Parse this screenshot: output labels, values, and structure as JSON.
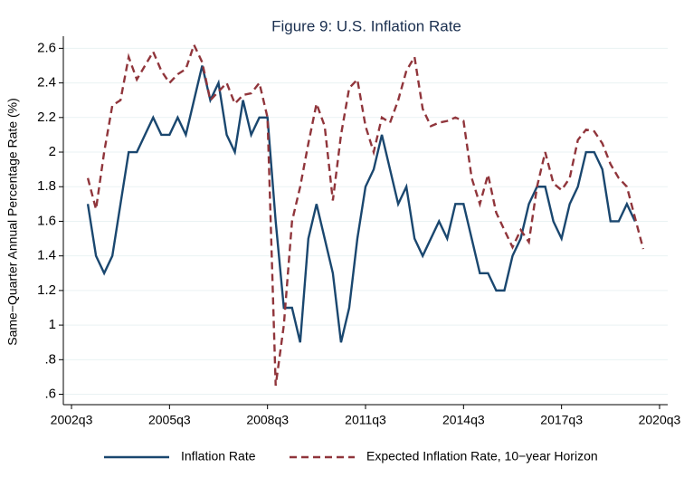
{
  "chart_data": {
    "type": "line",
    "title": "Figure 9: U.S. Inflation Rate",
    "y_label": "Same−Quarter Annual Percentage Rate (%)",
    "x": [
      "2003q1",
      "2003q2",
      "2003q3",
      "2003q4",
      "2004q1",
      "2004q2",
      "2004q3",
      "2004q4",
      "2005q1",
      "2005q2",
      "2005q3",
      "2005q4",
      "2006q1",
      "2006q2",
      "2006q3",
      "2006q4",
      "2007q1",
      "2007q2",
      "2007q3",
      "2007q4",
      "2008q1",
      "2008q2",
      "2008q3",
      "2008q4",
      "2009q1",
      "2009q2",
      "2009q3",
      "2009q4",
      "2010q1",
      "2010q2",
      "2010q3",
      "2010q4",
      "2011q1",
      "2011q2",
      "2011q3",
      "2011q4",
      "2012q1",
      "2012q2",
      "2012q3",
      "2012q4",
      "2013q1",
      "2013q2",
      "2013q3",
      "2013q4",
      "2014q1",
      "2014q2",
      "2014q3",
      "2014q4",
      "2015q1",
      "2015q2",
      "2015q3",
      "2015q4",
      "2016q1",
      "2016q2",
      "2016q3",
      "2016q4",
      "2017q1",
      "2017q2",
      "2017q3",
      "2017q4",
      "2018q1",
      "2018q2",
      "2018q3",
      "2018q4",
      "2019q1",
      "2019q2",
      "2019q3",
      "2019q4",
      "2020q1"
    ],
    "series": [
      {
        "name": "Inflation Rate",
        "color": "#1a476f",
        "dash": false,
        "values": [
          1.7,
          1.4,
          1.3,
          1.4,
          1.7,
          2.0,
          2.0,
          2.1,
          2.2,
          2.1,
          2.1,
          2.2,
          2.1,
          2.3,
          2.5,
          2.3,
          2.4,
          2.1,
          2.0,
          2.3,
          2.1,
          2.2,
          2.2,
          1.6,
          1.1,
          1.1,
          0.9,
          1.5,
          1.7,
          1.5,
          1.3,
          0.9,
          1.1,
          1.5,
          1.8,
          1.9,
          2.1,
          1.9,
          1.7,
          1.8,
          1.5,
          1.4,
          1.5,
          1.6,
          1.5,
          1.7,
          1.7,
          1.5,
          1.3,
          1.3,
          1.2,
          1.2,
          1.4,
          1.5,
          1.7,
          1.8,
          1.8,
          1.6,
          1.5,
          1.7,
          1.8,
          2.0,
          2.0,
          1.9,
          1.6,
          1.6,
          1.7,
          1.6,
          null
        ]
      },
      {
        "name": "Expected Inflation Rate, 10−year Horizon",
        "color": "#90353b",
        "dash": true,
        "values": [
          1.85,
          1.67,
          2.0,
          2.27,
          2.3,
          2.55,
          2.42,
          2.5,
          2.58,
          2.47,
          2.4,
          2.45,
          2.48,
          2.62,
          2.52,
          2.3,
          2.35,
          2.4,
          2.28,
          2.33,
          2.34,
          2.4,
          2.2,
          0.65,
          1.0,
          1.6,
          1.8,
          2.05,
          2.28,
          2.15,
          1.72,
          2.1,
          2.37,
          2.42,
          2.15,
          2.0,
          2.2,
          2.17,
          2.3,
          2.47,
          2.55,
          2.25,
          2.15,
          2.17,
          2.18,
          2.2,
          2.18,
          1.85,
          1.7,
          1.87,
          1.65,
          1.55,
          1.45,
          1.55,
          1.48,
          1.8,
          2.0,
          1.82,
          1.78,
          1.85,
          2.07,
          2.13,
          2.12,
          2.05,
          1.93,
          1.85,
          1.8,
          1.62,
          1.44
        ]
      }
    ],
    "xlim": [
      "2002q2",
      "2020q4"
    ],
    "xticks": [
      "2002q3",
      "2005q3",
      "2008q3",
      "2011q3",
      "2014q3",
      "2017q3",
      "2020q3"
    ],
    "ylim": [
      0.54,
      2.67
    ],
    "yticks": [
      {
        "value": 0.6,
        "label": ".6"
      },
      {
        "value": 0.8,
        "label": ".8"
      },
      1,
      1.2,
      1.4,
      1.6,
      1.8,
      2,
      2.2,
      2.4,
      2.6
    ],
    "grid": true,
    "legend": "bottom"
  }
}
